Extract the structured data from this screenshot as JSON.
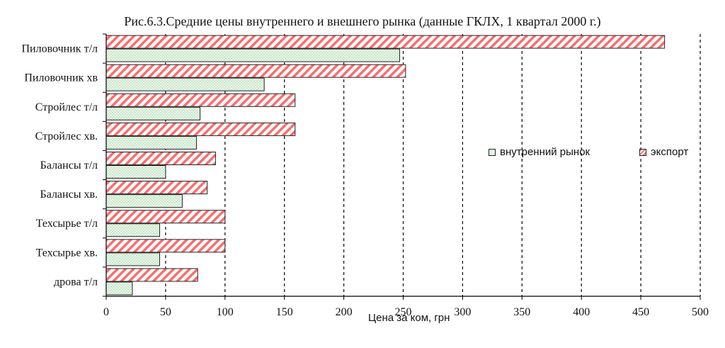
{
  "chart_data": {
    "type": "bar",
    "orientation": "horizontal",
    "title": "Рис.6.3.Средние цены внутреннего и внешнего рынка (данные ГКЛХ, 1 квартал 2000 г.)",
    "xlabel": "Цена за ком, грн",
    "ylabel": "",
    "xlim": [
      0,
      500
    ],
    "xticks": [
      0,
      50,
      100,
      150,
      200,
      250,
      300,
      350,
      400,
      450,
      500
    ],
    "grid": "vertical dashed",
    "legend_position": "right",
    "categories": [
      "Пиловочник  т/л",
      "Пиловочник  хв",
      "Стройлес т/л",
      "Стройлес хв.",
      "Балансы т/л",
      "Балансы хв.",
      "Техсырье т/л",
      "Техсырье хв.",
      "дрова т/л"
    ],
    "series": [
      {
        "name": "внутренний рынок",
        "values": [
          247,
          133,
          79,
          76,
          50,
          64,
          45,
          45,
          22
        ]
      },
      {
        "name": "экспорт",
        "values": [
          470,
          252,
          159,
          159,
          92,
          85,
          100,
          100,
          77
        ]
      }
    ],
    "colors": {
      "domestic_fill": "#e6f5e6",
      "domestic_pattern": "#b8dcb8",
      "export_stripe": "#ff6b6b",
      "export_bg": "#ffffff",
      "outline": "#222222"
    }
  }
}
